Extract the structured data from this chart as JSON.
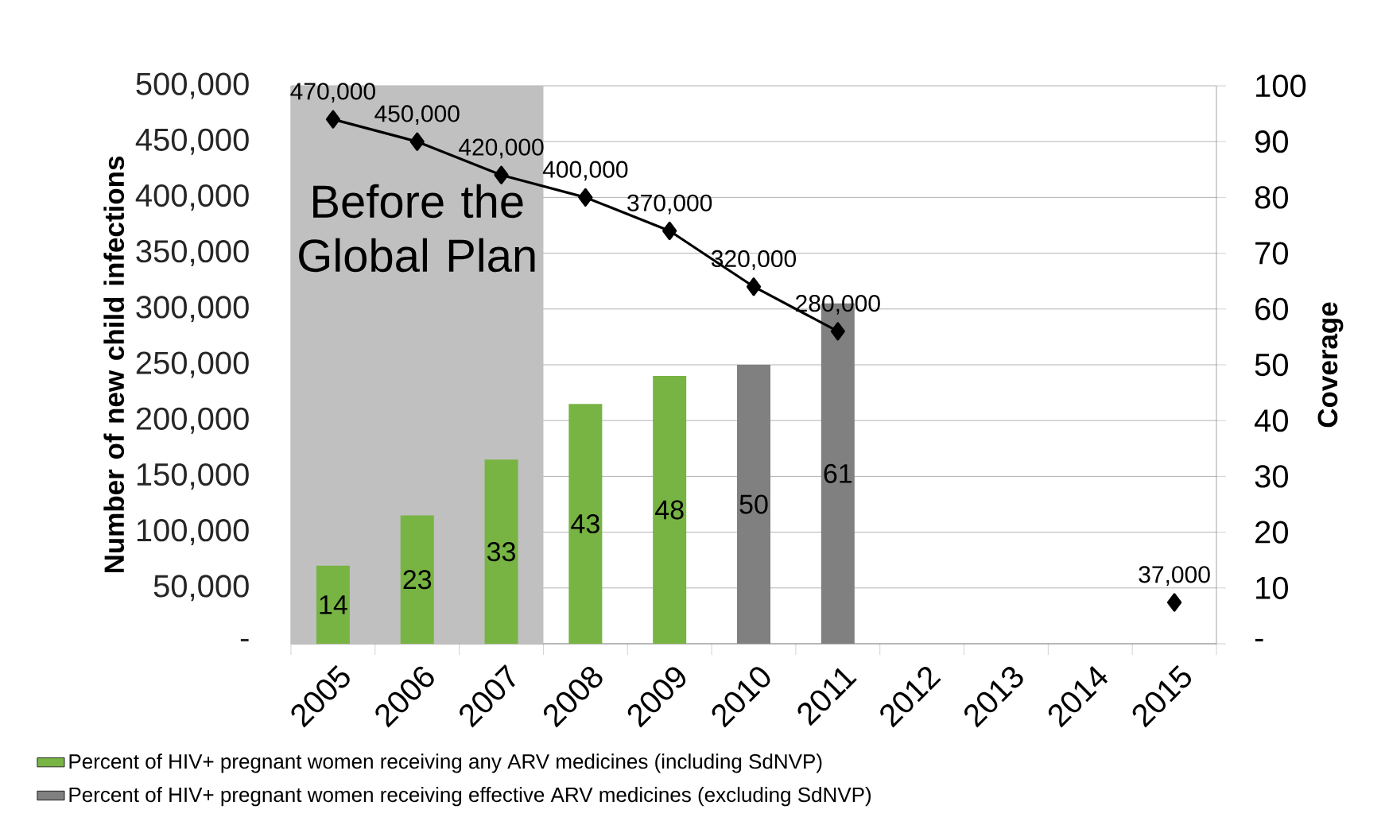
{
  "chart_data": {
    "type": "bar",
    "categories": [
      "2005",
      "2006",
      "2007",
      "2008",
      "2009",
      "2010",
      "2011",
      "2012",
      "2013",
      "2014",
      "2015"
    ],
    "ylabel": "Number of new child infections",
    "y2label": "Coverage",
    "ylim": [
      0,
      500000
    ],
    "yticks": [
      {
        "value": 0,
        "label": "-"
      },
      {
        "value": 50000,
        "label": "50,000"
      },
      {
        "value": 100000,
        "label": "100,000"
      },
      {
        "value": 150000,
        "label": "150,000"
      },
      {
        "value": 200000,
        "label": "200,000"
      },
      {
        "value": 250000,
        "label": "250,000"
      },
      {
        "value": 300000,
        "label": "300,000"
      },
      {
        "value": 350000,
        "label": "350,000"
      },
      {
        "value": 400000,
        "label": "400,000"
      },
      {
        "value": 450000,
        "label": "450,000"
      },
      {
        "value": 500000,
        "label": "500,000"
      }
    ],
    "y2lim": [
      0,
      100
    ],
    "y2ticks": [
      {
        "value": 0,
        "label": "-"
      },
      10,
      20,
      30,
      40,
      50,
      60,
      70,
      80,
      90,
      100
    ],
    "grid": "y",
    "legend": "bottom",
    "bands": [
      {
        "axis": "x",
        "from": "2005",
        "to": "2007",
        "label": "Before the Global Plan",
        "color": "#c0c0c0"
      }
    ],
    "series": [
      {
        "name": "Percent of HIV+ pregnant women receiving any ARV medicines (including SdNVP)",
        "axis": "y2",
        "color": "#77b443",
        "values": [
          14,
          23,
          33,
          43,
          48,
          null,
          null,
          null,
          null,
          null,
          null
        ],
        "value_labels": [
          "14",
          "23",
          "33",
          "43",
          "48",
          null,
          null,
          null,
          null,
          null,
          null
        ]
      },
      {
        "name": "Percent of HIV+ pregnant women receiving effective ARV medicines (excluding SdNVP)",
        "axis": "y2",
        "color": "#808080",
        "values": [
          null,
          null,
          null,
          null,
          null,
          50,
          61,
          null,
          null,
          null,
          null
        ],
        "value_labels": [
          null,
          null,
          null,
          null,
          null,
          "50",
          "61",
          null,
          null,
          null,
          null
        ]
      },
      {
        "type": "line",
        "axis": "y",
        "color": "#000000",
        "marker": "diamond",
        "values": [
          470000,
          450000,
          420000,
          400000,
          370000,
          320000,
          280000,
          null,
          null,
          null,
          37000
        ],
        "value_labels": [
          "470,000",
          "450,000",
          "420,000",
          "400,000",
          "370,000",
          "320,000",
          "280,000",
          null,
          null,
          null,
          "37,000"
        ]
      }
    ]
  }
}
